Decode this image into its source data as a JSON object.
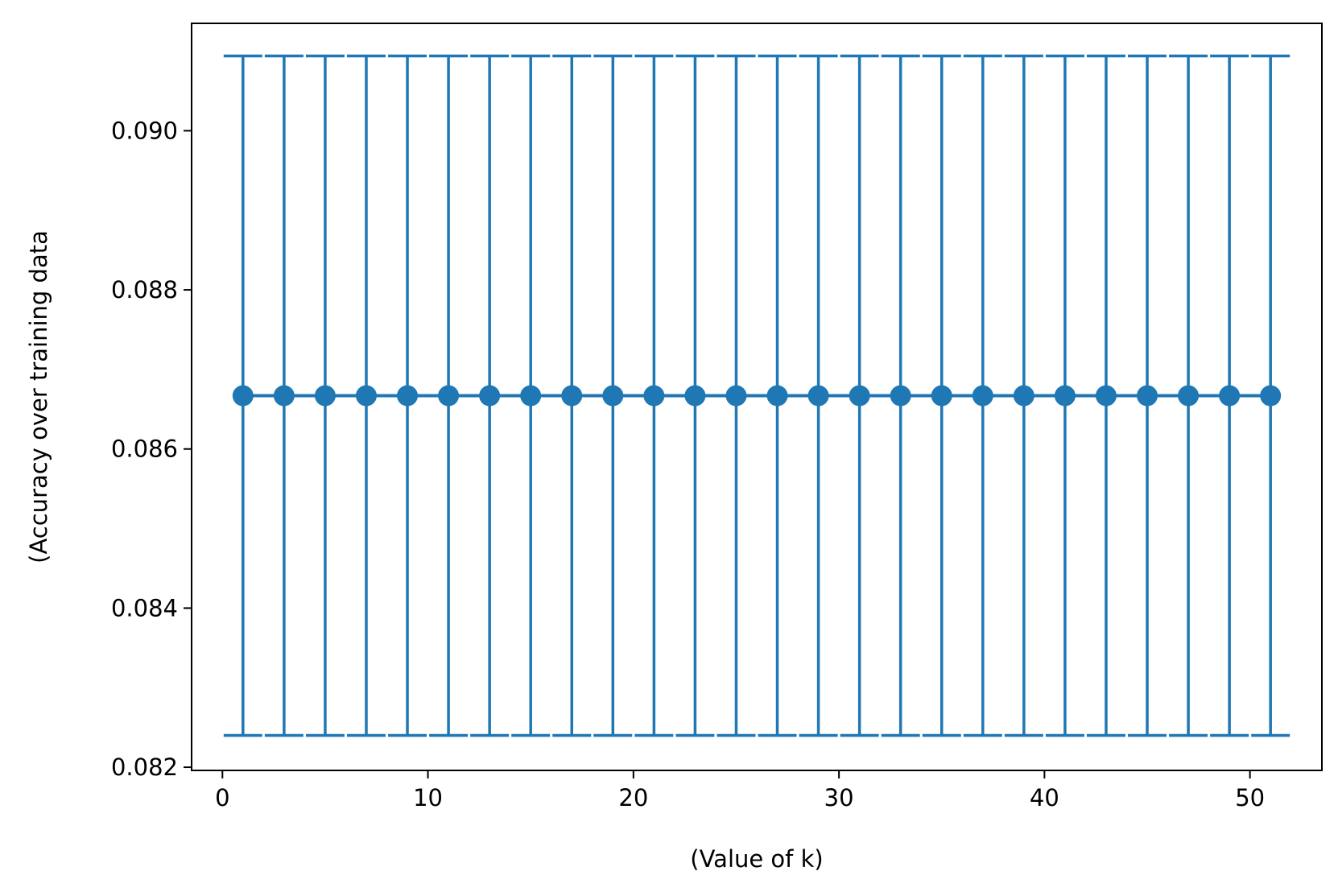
{
  "chart_data": {
    "type": "line",
    "title": "",
    "xlabel": "(Value of k)",
    "ylabel": "(Accuracy over training data",
    "x": [
      1,
      3,
      5,
      7,
      9,
      11,
      13,
      15,
      17,
      19,
      21,
      23,
      25,
      27,
      29,
      31,
      33,
      35,
      37,
      39,
      41,
      43,
      45,
      47,
      49,
      51
    ],
    "series": [
      {
        "values": [
          0.08667,
          0.08667,
          0.08667,
          0.08667,
          0.08667,
          0.08667,
          0.08667,
          0.08667,
          0.08667,
          0.08667,
          0.08667,
          0.08667,
          0.08667,
          0.08667,
          0.08667,
          0.08667,
          0.08667,
          0.08667,
          0.08667,
          0.08667,
          0.08667,
          0.08667,
          0.08667,
          0.08667,
          0.08667,
          0.08667
        ],
        "error": 0.00427,
        "marker": "circle",
        "color": "#1f77b4"
      }
    ],
    "xlim": [
      -1.5,
      53.5
    ],
    "ylim": [
      0.08196,
      0.09135
    ],
    "xticks": [
      0,
      10,
      20,
      30,
      40,
      50
    ],
    "xtick_labels": [
      "0",
      "10",
      "20",
      "30",
      "40",
      "50"
    ],
    "yticks": [
      0.082,
      0.084,
      0.086,
      0.088,
      0.09
    ],
    "ytick_labels": [
      "0.082",
      "0.084",
      "0.086",
      "0.088",
      "0.090"
    ],
    "grid": false,
    "legend": "none"
  }
}
